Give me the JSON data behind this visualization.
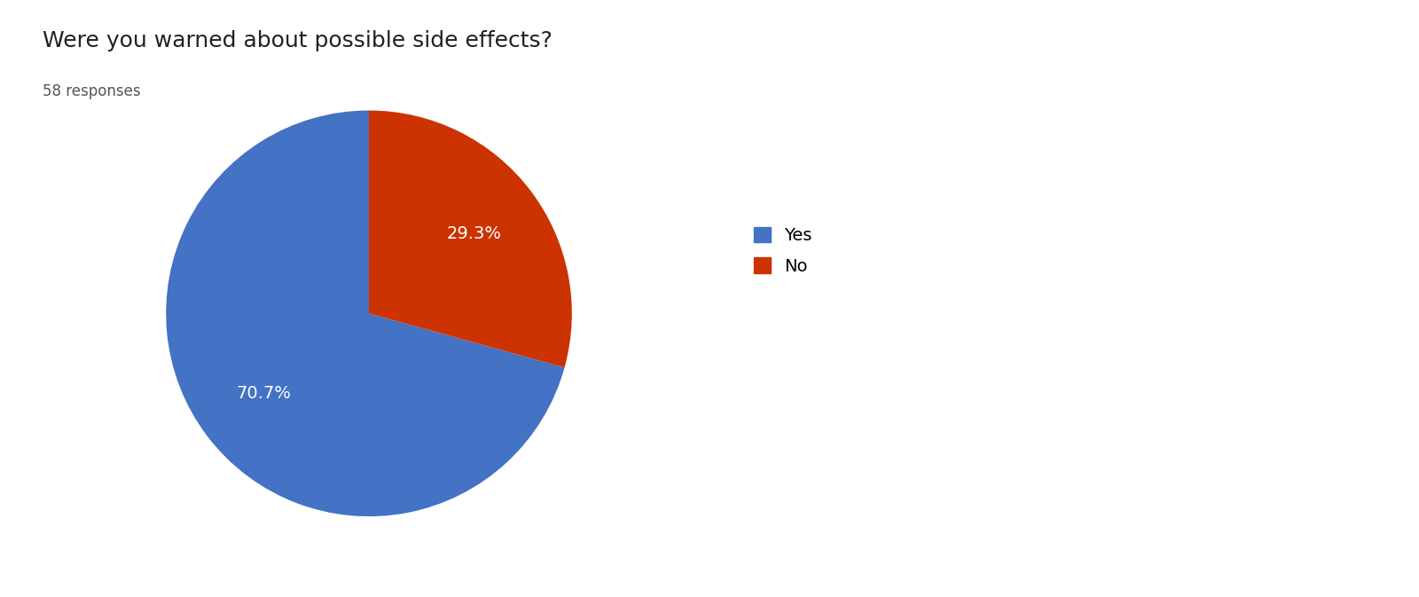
{
  "title": "Were you warned about possible side effects?",
  "subtitle": "58 responses",
  "labels": [
    "Yes",
    "No"
  ],
  "values": [
    70.7,
    29.3
  ],
  "colors": [
    "#4472C4",
    "#CC3300"
  ],
  "text_color_inside": "#FFFFFF",
  "background_color": "#FFFFFF",
  "title_fontsize": 18,
  "subtitle_fontsize": 12,
  "label_fontsize": 14,
  "legend_fontsize": 14,
  "startangle": 90
}
